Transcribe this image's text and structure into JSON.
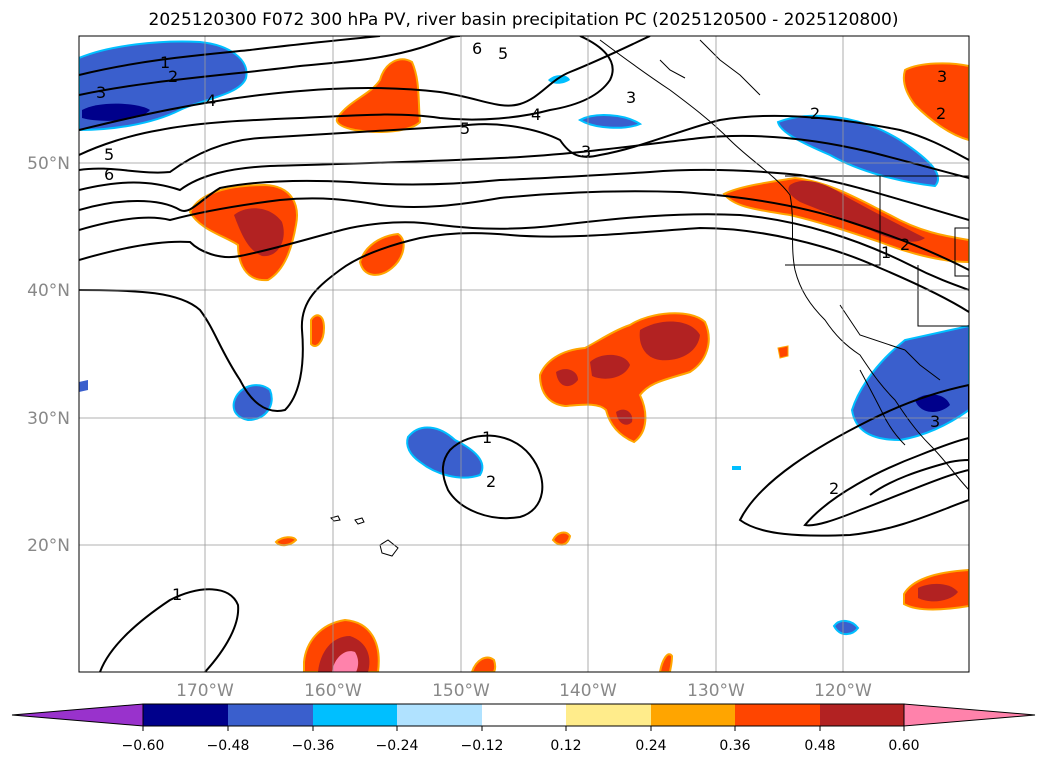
{
  "title": "2025120300 F072 300 hPa PV, river basin precipitation PC (2025120500 - 2025120800)",
  "lat_labels": [
    "50°N",
    "40°N",
    "30°N",
    "20°N"
  ],
  "lon_labels": [
    "170°W",
    "160°W",
    "150°W",
    "140°W",
    "130°W",
    "120°W"
  ],
  "contour_labels": [
    "1",
    "2",
    "3",
    "4",
    "5",
    "6",
    "5",
    "6",
    "5",
    "4",
    "3",
    "3",
    "2",
    "2",
    "3",
    "1",
    "2",
    "1",
    "2",
    "1",
    "2",
    "3"
  ],
  "colorbar": {
    "ticks": [
      "−0.60",
      "−0.48",
      "−0.36",
      "−0.24",
      "−0.12",
      "0.12",
      "0.24",
      "0.36",
      "0.48",
      "0.60"
    ],
    "colors": [
      "#9932cc",
      "#00008b",
      "#3a5fcd",
      "#00bfff",
      "#b0e2ff",
      "#ffffff",
      "#ffec8b",
      "#ffa500",
      "#ff4500",
      "#b22222",
      "#ff82ab"
    ]
  },
  "colors": {
    "neg_strong": "#00008b",
    "neg_med": "#3a5fcd",
    "neg_light": "#00bfff",
    "neg_pale": "#b0e2ff",
    "pos_pale": "#ffec8b",
    "pos_light": "#ffa500",
    "pos_med": "#ff4500",
    "pos_strong": "#b22222",
    "pos_max": "#ff82ab"
  }
}
